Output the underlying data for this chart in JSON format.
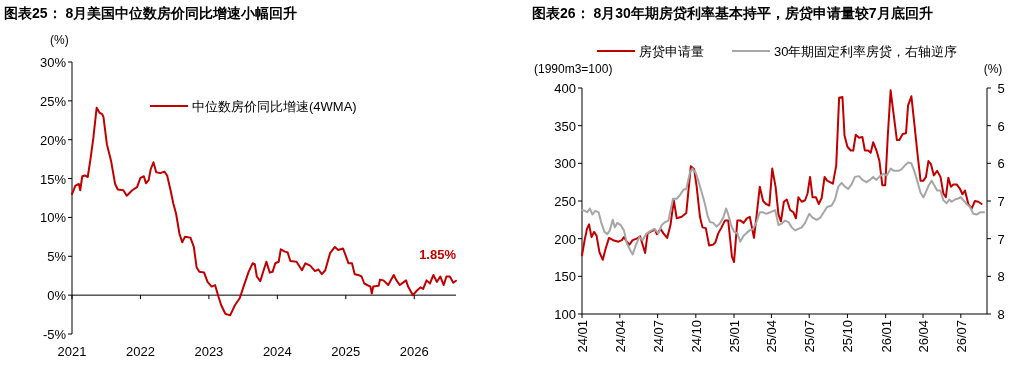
{
  "chart_data": [
    {
      "type": "line",
      "title": "图表25：  8月美国中位数房价同比增速小幅回升",
      "ylabel": "(%)",
      "legend": "top",
      "xlim": [
        2021,
        2026.61
      ],
      "xticks": [
        2021,
        2022,
        2023,
        2024,
        2025,
        2026
      ],
      "ylim": [
        -5,
        30
      ],
      "yticks": [
        {
          "value": -5,
          "label": "-5%"
        },
        {
          "value": 0,
          "label": "0%"
        },
        {
          "value": 5,
          "label": "5%"
        },
        {
          "value": 10,
          "label": "10%"
        },
        {
          "value": 15,
          "label": "15%"
        },
        {
          "value": 20,
          "label": "20%"
        },
        {
          "value": 25,
          "label": "25%"
        },
        {
          "value": 30,
          "label": "30%"
        }
      ],
      "annotations": [
        {
          "text": "1.85%",
          "x": 2026.61,
          "y": 1.85
        }
      ],
      "series": [
        {
          "name": "中位数房价同比增速(4WMA)",
          "color": "#c00000",
          "x": [
            2021.0,
            2021.05,
            2021.1,
            2021.12,
            2021.15,
            2021.19,
            2021.23,
            2021.27,
            2021.31,
            2021.36,
            2021.4,
            2021.44,
            2021.46,
            2021.51,
            2021.57,
            2021.63,
            2021.67,
            2021.75,
            2021.8,
            2021.88,
            2021.95,
            2022.0,
            2022.05,
            2022.08,
            2022.12,
            2022.15,
            2022.19,
            2022.23,
            2022.29,
            2022.35,
            2022.39,
            2022.44,
            2022.48,
            2022.52,
            2022.57,
            2022.61,
            2022.65,
            2022.73,
            2022.78,
            2022.82,
            2022.86,
            2022.93,
            2022.98,
            2023.04,
            2023.09,
            2023.14,
            2023.18,
            2023.24,
            2023.31,
            2023.38,
            2023.45,
            2023.51,
            2023.58,
            2023.64,
            2023.67,
            2023.7,
            2023.75,
            2023.8,
            2023.84,
            2023.89,
            2023.93,
            2023.97,
            2024.02,
            2024.05,
            2024.11,
            2024.15,
            2024.19,
            2024.28,
            2024.36,
            2024.41,
            2024.48,
            2024.55,
            2024.6,
            2024.65,
            2024.7,
            2024.77,
            2024.84,
            2024.89,
            2024.96,
            2025.04,
            2025.09,
            2025.13,
            2025.18,
            2025.23,
            2025.27,
            2025.36,
            2025.38,
            2025.4,
            2025.48,
            2025.5,
            2025.55,
            2025.62,
            2025.7,
            2025.74,
            2025.79,
            2025.88,
            2025.91,
            2025.98,
            2026.04,
            2026.09,
            2026.13,
            2026.18,
            2026.23,
            2026.28,
            2026.33,
            2026.38,
            2026.43,
            2026.47,
            2026.52,
            2026.57,
            2026.61
          ],
          "values": [
            13.0,
            14.1,
            14.3,
            13.5,
            15.3,
            15.4,
            15.2,
            17.5,
            20.1,
            24.1,
            23.5,
            23.3,
            22.9,
            19.4,
            17.3,
            14.3,
            13.6,
            13.5,
            12.8,
            13.5,
            13.9,
            15.1,
            15.3,
            14.4,
            14.8,
            16.2,
            17.1,
            15.8,
            15.7,
            15.9,
            15.4,
            13.5,
            11.8,
            10.5,
            7.9,
            6.8,
            7.5,
            7.4,
            6.2,
            3.6,
            3.0,
            2.9,
            1.7,
            1.1,
            1.3,
            -0.2,
            -1.3,
            -2.4,
            -2.6,
            -1.3,
            -0.4,
            1.2,
            3.0,
            4.1,
            4.0,
            2.4,
            1.8,
            3.2,
            4.3,
            2.9,
            3.0,
            4.1,
            4.3,
            5.9,
            5.6,
            5.5,
            4.4,
            4.3,
            3.2,
            4.1,
            3.8,
            3.1,
            3.3,
            2.7,
            3.2,
            5.4,
            6.2,
            5.8,
            6.0,
            4.1,
            4.1,
            2.7,
            2.6,
            2.4,
            1.5,
            1.1,
            0.2,
            1.1,
            1.2,
            2.0,
            1.9,
            1.3,
            2.6,
            1.9,
            1.3,
            1.9,
            1.1,
            0.0,
            0.6,
            1.0,
            0.8,
            1.9,
            1.5,
            2.6,
            1.7,
            2.4,
            1.3,
            2.4,
            2.4,
            1.6,
            1.85
          ]
        }
      ]
    },
    {
      "type": "line",
      "title": "图表26：  8月30年期房贷利率基本持平，房贷申请量较7月底回升",
      "ylabel": "(1990m3=100)",
      "y2label": "(%)",
      "legend": "top",
      "xlim": [
        "2024-01-01",
        "2026-09-02"
      ],
      "xticks": [
        {
          "value": "2024-01-01",
          "label": "24/01"
        },
        {
          "value": "2024-04-01",
          "label": "24/04"
        },
        {
          "value": "2024-07-01",
          "label": "24/07"
        },
        {
          "value": "2024-10-01",
          "label": "24/10"
        },
        {
          "value": "2025-01-01",
          "label": "25/01"
        },
        {
          "value": "2025-04-01",
          "label": "25/04"
        },
        {
          "value": "2025-07-01",
          "label": "25/07"
        },
        {
          "value": "2025-10-01",
          "label": "25/10"
        },
        {
          "value": "2026-01-01",
          "label": "26/01"
        },
        {
          "value": "2026-04-01",
          "label": "26/04"
        },
        {
          "value": "2026-07-01",
          "label": "26/07"
        }
      ],
      "ylim": [
        100,
        400
      ],
      "yticks": [
        100,
        150,
        200,
        250,
        300,
        350,
        400
      ],
      "y2lim": [
        8,
        5
      ],
      "y2ticks": [
        5,
        {
          "value": 5.5,
          "label": "6"
        },
        6,
        {
          "value": 6.5,
          "label": "7"
        },
        7,
        {
          "value": 7.5,
          "label": "8"
        },
        8
      ],
      "series": [
        {
          "name": "房贷申请量",
          "color": "#c00000",
          "x": [
            "2024-01-01",
            "2024-01-08",
            "2024-01-13",
            "2024-01-18",
            "2024-01-24",
            "2024-01-30",
            "2024-02-05",
            "2024-02-12",
            "2024-02-20",
            "2024-02-27",
            "2024-03-06",
            "2024-03-16",
            "2024-03-29",
            "2024-04-06",
            "2024-04-11",
            "2024-04-18",
            "2024-04-24",
            "2024-05-02",
            "2024-05-12",
            "2024-05-20",
            "2024-06-01",
            "2024-06-07",
            "2024-06-17",
            "2024-06-25",
            "2024-06-29",
            "2024-07-08",
            "2024-07-15",
            "2024-07-24",
            "2024-08-01",
            "2024-08-09",
            "2024-08-16",
            "2024-08-28",
            "2024-09-08",
            "2024-09-19",
            "2024-09-27",
            "2024-10-03",
            "2024-10-11",
            "2024-10-17",
            "2024-10-25",
            "2024-11-02",
            "2024-11-11",
            "2024-11-17",
            "2024-11-24",
            "2024-12-02",
            "2024-12-10",
            "2024-12-18",
            "2024-12-27",
            "2025-01-01",
            "2025-01-09",
            "2025-01-17",
            "2025-01-24",
            "2025-02-01",
            "2025-02-08",
            "2025-02-18",
            "2025-02-24",
            "2025-03-04",
            "2025-03-12",
            "2025-03-19",
            "2025-03-27",
            "2025-04-03",
            "2025-04-11",
            "2025-04-18",
            "2025-04-24",
            "2025-05-01",
            "2025-05-08",
            "2025-05-16",
            "2025-05-24",
            "2025-05-30",
            "2025-06-05",
            "2025-06-13",
            "2025-06-21",
            "2025-06-27",
            "2025-07-03",
            "2025-07-09",
            "2025-07-17",
            "2025-07-24",
            "2025-07-31",
            "2025-08-07",
            "2025-08-13",
            "2025-08-20",
            "2025-08-27",
            "2025-09-04",
            "2025-09-11",
            "2025-09-19",
            "2025-09-24",
            "2025-10-01",
            "2025-10-09",
            "2025-10-15",
            "2025-10-21",
            "2025-10-29",
            "2025-11-06",
            "2025-11-12",
            "2025-11-20",
            "2025-11-26",
            "2025-12-02",
            "2025-12-10",
            "2025-12-17",
            "2025-12-24",
            "2025-12-31",
            "2026-01-06",
            "2026-01-13",
            "2026-01-20",
            "2026-01-28",
            "2026-02-03",
            "2026-02-11",
            "2026-02-19",
            "2026-02-24",
            "2026-03-04",
            "2026-03-12",
            "2026-03-19",
            "2026-03-26",
            "2026-04-02",
            "2026-04-08",
            "2026-04-14",
            "2026-04-20",
            "2026-04-27",
            "2026-05-05",
            "2026-05-13",
            "2026-05-20",
            "2026-05-26",
            "2026-06-01",
            "2026-06-07",
            "2026-06-13",
            "2026-06-21",
            "2026-06-29",
            "2026-07-05",
            "2026-07-11",
            "2026-07-19",
            "2026-07-27",
            "2026-08-04",
            "2026-08-12",
            "2026-08-20"
          ],
          "values": [
            178,
            200,
            213,
            219,
            202,
            209,
            204,
            182,
            172,
            187,
            201,
            198,
            196,
            198,
            202,
            196,
            192,
            198,
            200,
            203,
            181,
            207,
            210,
            212,
            206,
            213,
            207,
            201,
            218,
            251,
            227,
            229,
            234,
            296,
            292,
            269,
            229,
            215,
            214,
            191,
            192,
            195,
            207,
            215,
            224,
            224,
            176,
            169,
            224,
            224,
            221,
            227,
            229,
            201,
            229,
            269,
            250,
            246,
            244,
            293,
            269,
            232,
            223,
            249,
            252,
            238,
            235,
            227,
            255,
            249,
            251,
            260,
            282,
            255,
            255,
            246,
            254,
            282,
            277,
            275,
            273,
            297,
            387,
            388,
            337,
            322,
            317,
            317,
            338,
            334,
            335,
            317,
            317,
            314,
            328,
            317,
            303,
            271,
            271,
            335,
            397,
            366,
            331,
            331,
            339,
            340,
            377,
            389,
            348,
            311,
            277,
            277,
            282,
            303,
            299,
            284,
            290,
            282,
            260,
            255,
            281,
            269,
            272,
            272,
            266,
            259,
            264,
            246,
            240,
            250,
            249,
            246
          ]
        },
        {
          "name": "30年期固定利率房贷，右轴逆序",
          "color": "#a6a6a6",
          "axis": "y2",
          "x": [
            "2024-01-01",
            "2024-01-08",
            "2024-01-13",
            "2024-01-20",
            "2024-01-26",
            "2024-02-02",
            "2024-02-10",
            "2024-02-16",
            "2024-02-24",
            "2024-03-02",
            "2024-03-08",
            "2024-03-15",
            "2024-03-20",
            "2024-03-26",
            "2024-04-03",
            "2024-04-11",
            "2024-04-18",
            "2024-04-26",
            "2024-05-02",
            "2024-05-10",
            "2024-05-18",
            "2024-05-26",
            "2024-06-03",
            "2024-06-13",
            "2024-06-23",
            "2024-07-03",
            "2024-07-11",
            "2024-07-19",
            "2024-07-27",
            "2024-08-07",
            "2024-08-16",
            "2024-08-24",
            "2024-09-01",
            "2024-09-08",
            "2024-09-17",
            "2024-09-23",
            "2024-10-01",
            "2024-10-07",
            "2024-10-15",
            "2024-10-23",
            "2024-10-29",
            "2024-11-04",
            "2024-11-12",
            "2024-11-20",
            "2024-11-28",
            "2024-12-06",
            "2024-12-13",
            "2024-12-18",
            "2024-12-25",
            "2025-01-01",
            "2025-01-09",
            "2025-01-16",
            "2025-01-24",
            "2025-02-01",
            "2025-02-08",
            "2025-02-16",
            "2025-02-24",
            "2025-03-04",
            "2025-03-12",
            "2025-03-20",
            "2025-03-29",
            "2025-04-10",
            "2025-04-18",
            "2025-04-26",
            "2025-05-04",
            "2025-05-12",
            "2025-05-20",
            "2025-05-28",
            "2025-06-05",
            "2025-06-13",
            "2025-06-21",
            "2025-07-01",
            "2025-07-09",
            "2025-07-19",
            "2025-07-28",
            "2025-08-05",
            "2025-08-13",
            "2025-08-24",
            "2025-09-01",
            "2025-09-09",
            "2025-09-17",
            "2025-09-25",
            "2025-10-03",
            "2025-10-11",
            "2025-10-19",
            "2025-10-29",
            "2025-11-06",
            "2025-11-16",
            "2025-11-24",
            "2025-12-02",
            "2025-12-10",
            "2025-12-18",
            "2025-12-27",
            "2026-01-04",
            "2026-01-13",
            "2026-01-21",
            "2026-02-01",
            "2026-02-08",
            "2026-02-16",
            "2026-02-24",
            "2026-03-04",
            "2026-03-12",
            "2026-03-20",
            "2026-03-26",
            "2026-04-02",
            "2026-04-08",
            "2026-04-15",
            "2026-04-22",
            "2026-04-27",
            "2026-05-05",
            "2026-05-13",
            "2026-05-20",
            "2026-05-28",
            "2026-06-03",
            "2026-06-09",
            "2026-06-17",
            "2026-06-23",
            "2026-07-01",
            "2026-07-07",
            "2026-07-15",
            "2026-07-23",
            "2026-07-31",
            "2026-08-08",
            "2026-08-16",
            "2026-08-26"
          ],
          "values": [
            6.62,
            6.63,
            6.65,
            6.6,
            6.68,
            6.63,
            6.65,
            6.78,
            6.91,
            6.94,
            6.89,
            6.75,
            6.85,
            6.79,
            6.82,
            6.89,
            7.06,
            7.15,
            7.21,
            7.08,
            6.98,
            7.02,
            6.94,
            6.9,
            6.87,
            6.93,
            6.82,
            6.78,
            6.76,
            6.47,
            6.47,
            6.42,
            6.35,
            6.34,
            6.12,
            6.07,
            6.13,
            6.23,
            6.38,
            6.54,
            6.69,
            6.78,
            6.79,
            6.84,
            6.8,
            6.72,
            6.6,
            6.68,
            6.82,
            6.91,
            6.93,
            7.04,
            6.96,
            6.92,
            6.89,
            6.87,
            6.78,
            6.65,
            6.65,
            6.67,
            6.65,
            6.62,
            6.82,
            6.8,
            6.76,
            6.78,
            6.85,
            6.89,
            6.87,
            6.85,
            6.79,
            6.67,
            6.72,
            6.75,
            6.72,
            6.65,
            6.58,
            6.56,
            6.48,
            6.31,
            6.26,
            6.31,
            6.34,
            6.28,
            6.18,
            6.17,
            6.22,
            6.25,
            6.22,
            6.18,
            6.22,
            6.17,
            6.14,
            6.16,
            6.07,
            6.1,
            6.1,
            6.08,
            6.03,
            5.99,
            6.0,
            6.12,
            6.27,
            6.39,
            6.45,
            6.38,
            6.29,
            6.23,
            6.28,
            6.36,
            6.36,
            6.49,
            6.53,
            6.48,
            6.51,
            6.48,
            6.47,
            6.45,
            6.49,
            6.54,
            6.58,
            6.67,
            6.68,
            6.65,
            6.65
          ]
        }
      ]
    }
  ]
}
